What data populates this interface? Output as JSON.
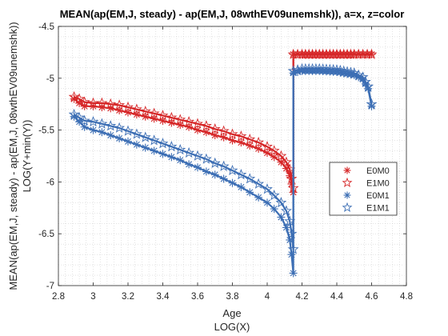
{
  "chart_data": {
    "type": "line",
    "title": "MEAN(ap(EM,J, steady) - ap(EM,J, 08wthEV09unemshk)), a=x, z=color",
    "xlabel": "Age",
    "xlabel2": "LOG(X)",
    "ylabel": "MEAN(ap(EM,J, steady) - ap(EM,J, 08wthEV09unemshk))",
    "ylabel2": "LOG(Y+min(Y))",
    "xlim": [
      2.8,
      4.8
    ],
    "ylim": [
      -7,
      -4.5
    ],
    "xticks": [
      "2.8",
      "3",
      "3.2",
      "3.4",
      "3.6",
      "3.8",
      "4",
      "4.2",
      "4.4",
      "4.6",
      "4.8"
    ],
    "yticks": [
      "-7",
      "-6.5",
      "-6",
      "-5.5",
      "-5",
      "-4.5"
    ],
    "grid": "minor-dotted",
    "legend_position": "right",
    "colors": {
      "red": "#d62728",
      "blue": "#3c6eb4"
    },
    "series": [
      {
        "name": "E0M0",
        "color": "#d62728",
        "marker": "asterisk",
        "x": [
          2.89,
          2.92,
          2.95,
          3.0,
          3.05,
          3.1,
          3.15,
          3.2,
          3.25,
          3.3,
          3.35,
          3.4,
          3.45,
          3.5,
          3.55,
          3.6,
          3.65,
          3.7,
          3.75,
          3.8,
          3.85,
          3.9,
          3.95,
          4.0,
          4.04,
          4.08,
          4.11,
          4.13,
          4.14,
          4.15,
          4.15,
          4.2,
          4.3,
          4.4,
          4.5,
          4.55,
          4.6
        ],
        "y": [
          -5.2,
          -5.24,
          -5.27,
          -5.27,
          -5.28,
          -5.29,
          -5.31,
          -5.33,
          -5.35,
          -5.37,
          -5.39,
          -5.41,
          -5.43,
          -5.45,
          -5.47,
          -5.5,
          -5.52,
          -5.55,
          -5.57,
          -5.6,
          -5.62,
          -5.65,
          -5.68,
          -5.72,
          -5.76,
          -5.81,
          -5.87,
          -5.94,
          -6.02,
          -6.1,
          -4.77,
          -4.77,
          -4.77,
          -4.77,
          -4.77,
          -4.77,
          -4.77
        ]
      },
      {
        "name": "E1M0",
        "color": "#d62728",
        "marker": "pentagram",
        "x": [
          2.89,
          2.92,
          2.95,
          3.0,
          3.05,
          3.1,
          3.15,
          3.2,
          3.25,
          3.3,
          3.35,
          3.4,
          3.45,
          3.5,
          3.55,
          3.6,
          3.65,
          3.7,
          3.75,
          3.8,
          3.85,
          3.9,
          3.95,
          4.0,
          4.04,
          4.08,
          4.11,
          4.13,
          4.14,
          4.15,
          4.15,
          4.2,
          4.3,
          4.4,
          4.5,
          4.55,
          4.6
        ],
        "y": [
          -5.18,
          -5.2,
          -5.23,
          -5.24,
          -5.24,
          -5.25,
          -5.26,
          -5.28,
          -5.3,
          -5.32,
          -5.34,
          -5.36,
          -5.38,
          -5.4,
          -5.42,
          -5.44,
          -5.46,
          -5.49,
          -5.51,
          -5.54,
          -5.56,
          -5.59,
          -5.62,
          -5.66,
          -5.7,
          -5.75,
          -5.81,
          -5.88,
          -5.97,
          -6.06,
          -4.77,
          -4.77,
          -4.77,
          -4.77,
          -4.77,
          -4.77,
          -4.77
        ]
      },
      {
        "name": "E0M1",
        "color": "#3c6eb4",
        "marker": "asterisk",
        "x": [
          2.89,
          2.92,
          2.95,
          3.0,
          3.05,
          3.1,
          3.15,
          3.2,
          3.25,
          3.3,
          3.35,
          3.4,
          3.45,
          3.5,
          3.55,
          3.6,
          3.65,
          3.7,
          3.75,
          3.8,
          3.85,
          3.9,
          3.95,
          4.0,
          4.04,
          4.08,
          4.11,
          4.13,
          4.14,
          4.15,
          4.15,
          4.2,
          4.3,
          4.4,
          4.5,
          4.55,
          4.58,
          4.6
        ],
        "y": [
          -5.37,
          -5.42,
          -5.47,
          -5.5,
          -5.52,
          -5.55,
          -5.58,
          -5.61,
          -5.64,
          -5.67,
          -5.7,
          -5.73,
          -5.76,
          -5.79,
          -5.83,
          -5.86,
          -5.9,
          -5.93,
          -5.97,
          -6.01,
          -6.05,
          -6.1,
          -6.15,
          -6.2,
          -6.26,
          -6.34,
          -6.44,
          -6.56,
          -6.7,
          -6.88,
          -4.95,
          -4.93,
          -4.93,
          -4.94,
          -4.97,
          -5.01,
          -5.1,
          -5.27
        ]
      },
      {
        "name": "E1M1",
        "color": "#3c6eb4",
        "marker": "pentagram",
        "x": [
          2.89,
          2.92,
          2.95,
          3.0,
          3.05,
          3.1,
          3.15,
          3.2,
          3.25,
          3.3,
          3.35,
          3.4,
          3.45,
          3.5,
          3.55,
          3.6,
          3.65,
          3.7,
          3.75,
          3.8,
          3.85,
          3.9,
          3.95,
          4.0,
          4.04,
          4.08,
          4.11,
          4.13,
          4.14,
          4.15,
          4.15,
          4.2,
          4.3,
          4.4,
          4.5,
          4.55,
          4.58,
          4.6
        ],
        "y": [
          -5.35,
          -5.38,
          -5.41,
          -5.42,
          -5.44,
          -5.46,
          -5.48,
          -5.51,
          -5.54,
          -5.57,
          -5.6,
          -5.63,
          -5.66,
          -5.69,
          -5.72,
          -5.75,
          -5.78,
          -5.82,
          -5.85,
          -5.89,
          -5.93,
          -5.97,
          -6.02,
          -6.07,
          -6.13,
          -6.2,
          -6.28,
          -6.38,
          -6.5,
          -6.65,
          -4.93,
          -4.91,
          -4.91,
          -4.92,
          -4.95,
          -4.99,
          -5.08,
          -5.25
        ]
      }
    ]
  }
}
